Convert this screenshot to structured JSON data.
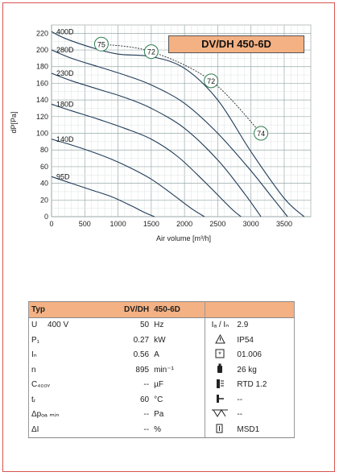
{
  "chart_data": {
    "type": "line",
    "title": "DV/DH 450-6D",
    "xlabel": "Air volume [m³/h]",
    "ylabel": "dP[Pa]",
    "xlim": [
      0,
      3900
    ],
    "ylim": [
      0,
      230
    ],
    "xticks": [
      "0",
      "500",
      "1000",
      "1500",
      "2000",
      "2500",
      "3000",
      "3500"
    ],
    "yticks": [
      "0",
      "20",
      "40",
      "60",
      "80",
      "100",
      "120",
      "140",
      "160",
      "180",
      "200",
      "220"
    ],
    "grid": true,
    "series": [
      {
        "name": "400D",
        "x": [
          0,
          200,
          600,
          1000,
          1500,
          2000,
          2500,
          3000,
          3500,
          3800
        ],
        "y": [
          222,
          214,
          203,
          195,
          192,
          178,
          140,
          78,
          22,
          0
        ]
      },
      {
        "name": "280D",
        "x": [
          0,
          300,
          700,
          1100,
          1500,
          2000,
          2500,
          3000,
          3300,
          3550
        ],
        "y": [
          200,
          190,
          180,
          170,
          158,
          136,
          100,
          55,
          25,
          0
        ]
      },
      {
        "name": "230D",
        "x": [
          0,
          300,
          700,
          1100,
          1500,
          2000,
          2500,
          2900,
          3150
        ],
        "y": [
          172,
          163,
          153,
          143,
          130,
          106,
          68,
          28,
          0
        ]
      },
      {
        "name": "180D",
        "x": [
          0,
          300,
          700,
          1100,
          1500,
          1900,
          2300,
          2700,
          2850
        ],
        "y": [
          135,
          127,
          117,
          106,
          93,
          72,
          42,
          10,
          0
        ]
      },
      {
        "name": "140D",
        "x": [
          0,
          300,
          600,
          900,
          1200,
          1500,
          1800,
          2100,
          2300
        ],
        "y": [
          93,
          86,
          78,
          69,
          58,
          45,
          28,
          10,
          0
        ]
      },
      {
        "name": "95D",
        "x": [
          0,
          300,
          600,
          900,
          1200,
          1400,
          1550
        ],
        "y": [
          48,
          40,
          32,
          24,
          13,
          5,
          0
        ]
      }
    ],
    "efficiency_line": {
      "x": [
        750,
        1500,
        2400,
        3150
      ],
      "y": [
        207,
        198,
        163,
        100
      ]
    },
    "efficiency_labels": [
      "75",
      "72",
      "72",
      "74"
    ]
  },
  "table": {
    "header": [
      "Typ",
      "DV/DH",
      "450-6D",
      ""
    ],
    "rows": [
      {
        "label": "U",
        "mid": "400   V",
        "value": "50",
        "unit": "Hz",
        "icon": "current-ratio-icon",
        "rlabel": "Iₐ / Iₙ",
        "rvalue": "2.9"
      },
      {
        "label": "P₁",
        "mid": "",
        "value": "0.27",
        "unit": "kW",
        "icon": "warning-triangle-icon",
        "rlabel": "",
        "rvalue": "IP54"
      },
      {
        "label": "Iₙ",
        "mid": "",
        "value": "0.56",
        "unit": "A",
        "icon": "wiring-diagram-icon",
        "rlabel": "",
        "rvalue": "01.006"
      },
      {
        "label": "n",
        "mid": "",
        "value": "895",
        "unit": "min⁻¹",
        "icon": "weight-icon",
        "rlabel": "",
        "rvalue": "26 kg"
      },
      {
        "label": "C₄₀₀ᵥ",
        "mid": "",
        "value": "--",
        "unit": "µF",
        "icon": "thermal-protection-icon",
        "rlabel": "",
        "rvalue": "RTD 1.2"
      },
      {
        "label": "tᵣ",
        "mid": "",
        "value": "60",
        "unit": "°C",
        "icon": "connector-icon",
        "rlabel": "",
        "rvalue": "--"
      },
      {
        "label": "Δpₒₐ ₘᵢₙ",
        "mid": "",
        "value": "--",
        "unit": "Pa",
        "icon": "filter-icon",
        "rlabel": "",
        "rvalue": "--"
      },
      {
        "label": "ΔI",
        "mid": "",
        "value": "--",
        "unit": "%",
        "icon": "switch-icon",
        "rlabel": "",
        "rvalue": "MSD1"
      }
    ]
  }
}
